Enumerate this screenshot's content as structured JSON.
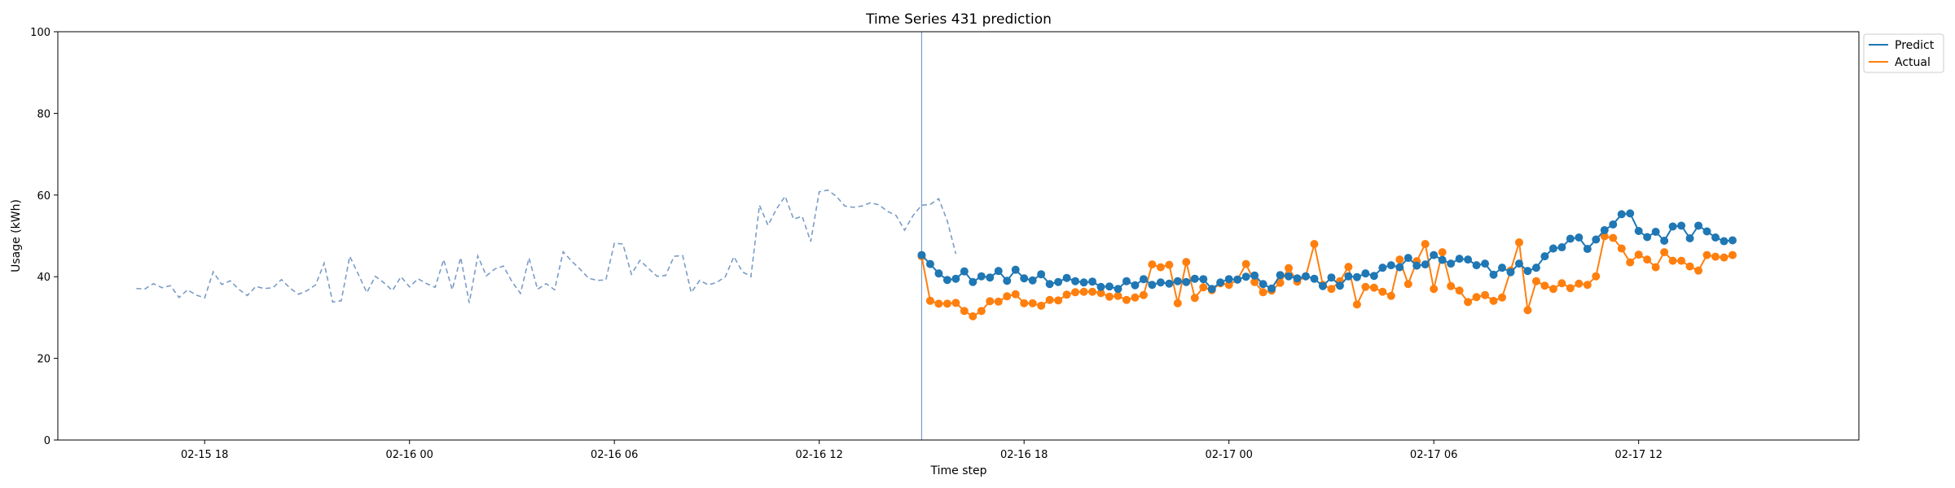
{
  "chart_data": {
    "type": "line",
    "title": "Time Series 431 prediction",
    "xlabel": "Time step",
    "ylabel": "Usage (kWh)",
    "ylim": [
      0,
      100
    ],
    "yticks": [
      0,
      20,
      40,
      60,
      80,
      100
    ],
    "xlim": [
      "2026-02-15T13:42",
      "2026-02-17T18:27"
    ],
    "xticks": [
      {
        "t": "2026-02-15T18:00",
        "label": "02-15 18"
      },
      {
        "t": "2026-02-16T00:00",
        "label": "02-16 00"
      },
      {
        "t": "2026-02-16T06:00",
        "label": "02-16 06"
      },
      {
        "t": "2026-02-16T12:00",
        "label": "02-16 12"
      },
      {
        "t": "2026-02-16T18:00",
        "label": "02-16 18"
      },
      {
        "t": "2026-02-17T00:00",
        "label": "02-17 00"
      },
      {
        "t": "2026-02-17T06:00",
        "label": "02-17 06"
      },
      {
        "t": "2026-02-17T12:00",
        "label": "02-17 12"
      }
    ],
    "grid": false,
    "legend_position": "upper-right-outside",
    "interval_minutes": 15,
    "history": {
      "start": "2026-02-15T16:00",
      "color": "#7a9cc6",
      "style": "dashed",
      "values": [
        37.1,
        37.0,
        38.3,
        37.3,
        37.8,
        34.9,
        36.8,
        35.5,
        34.8,
        41.2,
        38.1,
        39.0,
        36.9,
        35.4,
        37.6,
        37.1,
        37.3,
        39.3,
        37.2,
        35.7,
        36.6,
        38.0,
        43.3,
        33.8,
        34.1,
        45.0,
        40.6,
        36.1,
        40.1,
        38.5,
        36.6,
        40.0,
        37.5,
        39.5,
        38.3,
        37.4,
        44.2,
        36.8,
        44.7,
        33.6,
        45.1,
        40.2,
        41.9,
        42.6,
        38.8,
        35.9,
        44.6,
        36.9,
        38.3,
        36.8,
        46.1,
        43.8,
        41.8,
        39.6,
        39.1,
        39.2,
        48.2,
        48.0,
        40.6,
        44.0,
        42.0,
        40.1,
        40.3,
        45.0,
        45.2,
        36.1,
        39.1,
        38.0,
        38.6,
        40.0,
        44.9,
        41.2,
        40.0,
        57.5,
        52.6,
        56.6,
        59.7,
        54.1,
        54.8,
        48.6,
        60.8,
        61.2,
        59.7,
        57.3,
        57.0,
        57.3,
        58.1,
        57.6,
        56.0,
        55.0,
        51.4,
        55.0,
        57.5,
        57.7,
        59.1,
        53.7,
        45.6
      ]
    },
    "forecast_start": "2026-02-16T15:00",
    "series": [
      {
        "name": "Predict",
        "color": "#1f77b4",
        "values": [
          45.3,
          43.1,
          40.8,
          39.2,
          39.5,
          41.3,
          38.7,
          40.1,
          39.8,
          41.4,
          39.0,
          41.7,
          39.6,
          39.1,
          40.6,
          38.2,
          38.7,
          39.7,
          38.9,
          38.6,
          38.8,
          37.5,
          37.6,
          37.0,
          38.9,
          37.9,
          39.4,
          38.0,
          38.6,
          38.3,
          38.9,
          38.7,
          39.5,
          39.4,
          37.0,
          38.6,
          39.4,
          39.3,
          40.0,
          40.3,
          38.2,
          37.1,
          40.4,
          40.1,
          39.6,
          40.1,
          39.5,
          37.7,
          39.8,
          37.8,
          40.1,
          39.9,
          40.8,
          40.2,
          42.2,
          42.8,
          42.3,
          44.6,
          42.7,
          43.0,
          45.3,
          44.1,
          43.2,
          44.4,
          44.2,
          42.8,
          43.2,
          40.5,
          42.2,
          41.1,
          43.2,
          41.4,
          42.2,
          45.0,
          46.9,
          47.2,
          49.3,
          49.6,
          46.8,
          49.1,
          51.4,
          52.8,
          55.3,
          55.5,
          51.2,
          49.7,
          51.0,
          48.8,
          52.3,
          52.5,
          49.4,
          52.5,
          51.1,
          49.6,
          48.7,
          48.9
        ]
      },
      {
        "name": "Actual",
        "color": "#ff7f0e",
        "values": [
          45.0,
          34.1,
          33.4,
          33.4,
          33.6,
          31.6,
          30.3,
          31.6,
          34.0,
          33.9,
          35.2,
          35.7,
          33.5,
          33.5,
          32.9,
          34.3,
          34.2,
          35.6,
          36.2,
          36.3,
          36.3,
          36.0,
          35.1,
          35.3,
          34.3,
          34.9,
          35.5,
          43.0,
          42.3,
          42.9,
          33.5,
          43.6,
          34.8,
          37.4,
          36.7,
          38.4,
          38.0,
          39.3,
          43.1,
          38.7,
          36.2,
          36.6,
          38.5,
          42.1,
          38.8,
          40.1,
          48.0,
          38.0,
          37.0,
          38.9,
          42.4,
          33.2,
          37.5,
          37.3,
          36.3,
          35.3,
          44.2,
          38.2,
          43.8,
          48.0,
          37.0,
          46.0,
          37.7,
          36.6,
          33.8,
          35.0,
          35.5,
          34.1,
          34.9,
          41.5,
          48.4,
          31.8,
          38.9,
          37.8,
          37.0,
          38.4,
          37.2,
          38.3,
          38.0,
          40.1,
          49.9,
          49.5,
          46.9,
          43.5,
          45.4,
          44.2,
          42.3,
          46.0,
          43.9,
          43.9,
          42.5,
          41.5,
          45.3,
          44.9,
          44.7,
          45.3
        ]
      }
    ]
  }
}
